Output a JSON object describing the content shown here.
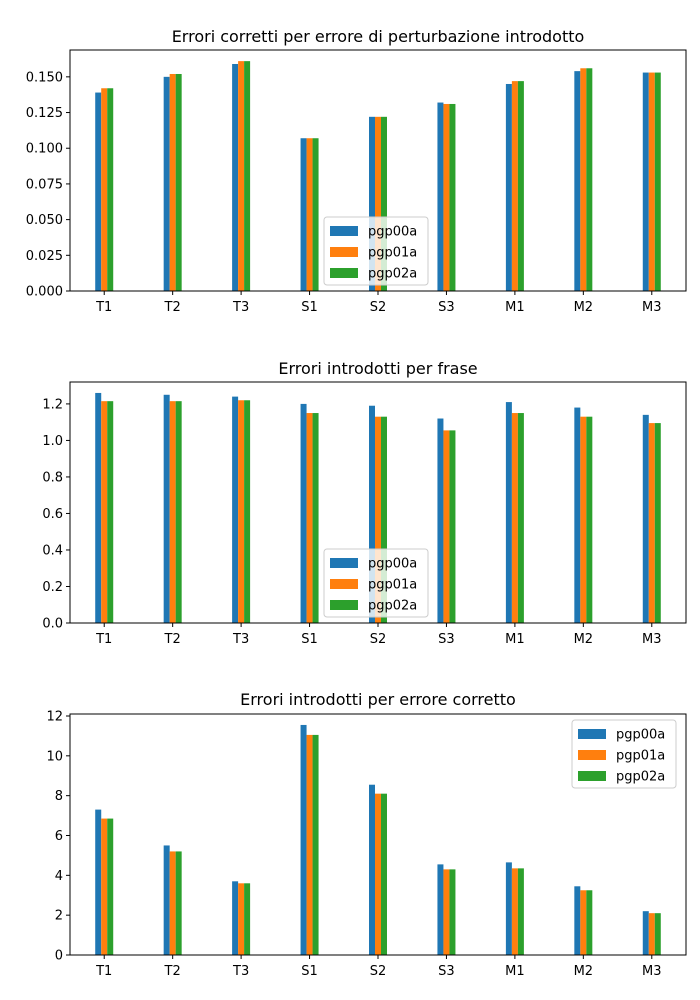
{
  "colors": {
    "series": [
      "#1f77b4",
      "#ff7f0e",
      "#2ca02c"
    ],
    "axes": "#000000",
    "legend_border": "#cccccc",
    "background": "#ffffff"
  },
  "chart_data": [
    {
      "type": "bar",
      "title": "Errori corretti per errore di perturbazione introdotto",
      "xlabel": "",
      "ylabel": "",
      "categories": [
        "T1",
        "T2",
        "T3",
        "S1",
        "S2",
        "S3",
        "M1",
        "M2",
        "M3"
      ],
      "series": [
        {
          "name": "pgp00a",
          "values": [
            0.139,
            0.15,
            0.159,
            0.107,
            0.122,
            0.132,
            0.145,
            0.154,
            0.153
          ]
        },
        {
          "name": "pgp01a",
          "values": [
            0.142,
            0.152,
            0.161,
            0.107,
            0.122,
            0.131,
            0.147,
            0.156,
            0.153
          ]
        },
        {
          "name": "pgp02a",
          "values": [
            0.142,
            0.152,
            0.161,
            0.107,
            0.122,
            0.131,
            0.147,
            0.156,
            0.153
          ]
        }
      ],
      "ylim": [
        0,
        0.1688
      ],
      "yticks": [
        0.0,
        0.025,
        0.05,
        0.075,
        0.1,
        0.125,
        0.15
      ],
      "ytick_labels": [
        "0.000",
        "0.025",
        "0.050",
        "0.075",
        "0.100",
        "0.125",
        "0.150"
      ],
      "legend_position": "lower-center",
      "grid": false
    },
    {
      "type": "bar",
      "title": "Errori introdotti per frase",
      "xlabel": "",
      "ylabel": "",
      "categories": [
        "T1",
        "T2",
        "T3",
        "S1",
        "S2",
        "S3",
        "M1",
        "M2",
        "M3"
      ],
      "series": [
        {
          "name": "pgp00a",
          "values": [
            1.26,
            1.25,
            1.24,
            1.2,
            1.19,
            1.12,
            1.21,
            1.18,
            1.14
          ]
        },
        {
          "name": "pgp01a",
          "values": [
            1.215,
            1.215,
            1.22,
            1.15,
            1.13,
            1.055,
            1.15,
            1.13,
            1.095
          ]
        },
        {
          "name": "pgp02a",
          "values": [
            1.215,
            1.215,
            1.22,
            1.15,
            1.13,
            1.055,
            1.15,
            1.13,
            1.095
          ]
        }
      ],
      "ylim": [
        0,
        1.32
      ],
      "yticks": [
        0.0,
        0.2,
        0.4,
        0.6,
        0.8,
        1.0,
        1.2
      ],
      "ytick_labels": [
        "0.0",
        "0.2",
        "0.4",
        "0.6",
        "0.8",
        "1.0",
        "1.2"
      ],
      "legend_position": "lower-center",
      "grid": false
    },
    {
      "type": "bar",
      "title": "Errori introdotti per errore corretto",
      "xlabel": "",
      "ylabel": "",
      "categories": [
        "T1",
        "T2",
        "T3",
        "S1",
        "S2",
        "S3",
        "M1",
        "M2",
        "M3"
      ],
      "series": [
        {
          "name": "pgp00a",
          "values": [
            7.3,
            5.5,
            3.7,
            11.55,
            8.55,
            4.55,
            4.65,
            3.45,
            2.2
          ]
        },
        {
          "name": "pgp01a",
          "values": [
            6.85,
            5.2,
            3.6,
            11.05,
            8.1,
            4.3,
            4.35,
            3.25,
            2.1
          ]
        },
        {
          "name": "pgp02a",
          "values": [
            6.85,
            5.2,
            3.6,
            11.05,
            8.1,
            4.3,
            4.35,
            3.25,
            2.1
          ]
        }
      ],
      "ylim": [
        0,
        12.1
      ],
      "yticks": [
        0,
        2,
        4,
        6,
        8,
        10,
        12
      ],
      "ytick_labels": [
        "0",
        "2",
        "4",
        "6",
        "8",
        "10",
        "12"
      ],
      "legend_position": "upper-right",
      "grid": false
    }
  ]
}
